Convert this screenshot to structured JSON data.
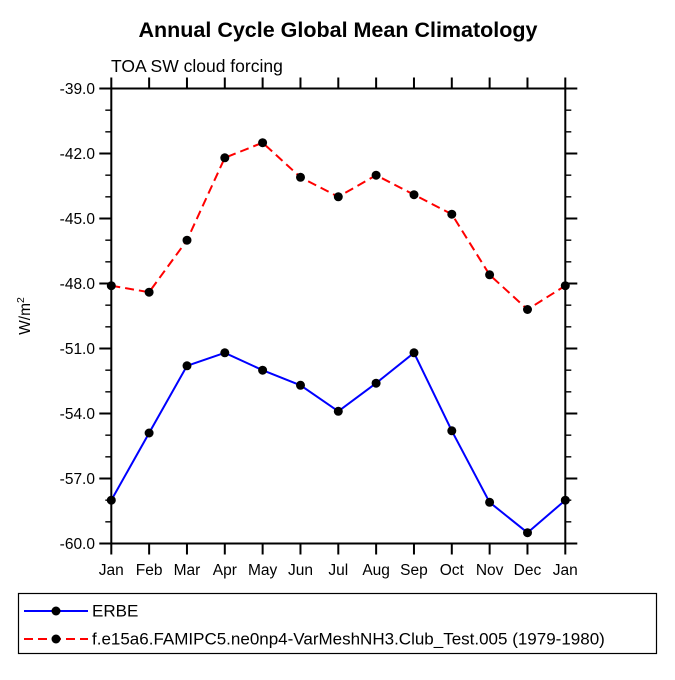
{
  "title": "Annual Cycle Global Mean Climatology",
  "subtitle": "TOA SW cloud forcing",
  "y_axis": {
    "label_base": "W/m",
    "label_sup": "2"
  },
  "colors": {
    "erbe_line": "#0000ff",
    "model_line": "#ff0000",
    "marker": "#000000",
    "axis": "#000000",
    "background": "#ffffff"
  },
  "chart_data": {
    "type": "line",
    "title": "Annual Cycle Global Mean Climatology",
    "subtitle": "TOA SW cloud forcing",
    "ylabel": "W/m2",
    "xlabel": "",
    "categories": [
      "Jan",
      "Feb",
      "Mar",
      "Apr",
      "May",
      "Jun",
      "Jul",
      "Aug",
      "Sep",
      "Oct",
      "Nov",
      "Dec",
      "Jan"
    ],
    "series": [
      {
        "name": "ERBE",
        "color": "#0000ff",
        "style": "solid",
        "marker": "filled-circle",
        "values": [
          -58.0,
          -54.9,
          -51.8,
          -51.2,
          -52.0,
          -52.7,
          -53.9,
          -52.6,
          -51.2,
          -54.8,
          -58.1,
          -59.5,
          -58.0
        ]
      },
      {
        "name": "f.e15a6.FAMIPC5.ne0np4-VarMeshNH3.Club_Test.005 (1979-1980)",
        "color": "#ff0000",
        "style": "dashed",
        "marker": "filled-circle",
        "values": [
          -48.1,
          -48.4,
          -46.0,
          -42.2,
          -41.5,
          -43.1,
          -44.0,
          -43.0,
          -43.9,
          -44.8,
          -47.6,
          -49.2,
          -48.1
        ]
      }
    ],
    "ylim": [
      -60.0,
      -39.0
    ],
    "ytick_step": 3.0,
    "yminor_step": 1.0,
    "ytick_labels": [
      "-39.0",
      "-42.0",
      "-45.0",
      "-48.0",
      "-51.0",
      "-54.0",
      "-57.0",
      "-60.0"
    ],
    "grid": false,
    "legend_position": "bottom-left-box"
  },
  "legend": {
    "items": [
      {
        "label": "ERBE"
      },
      {
        "label": "f.e15a6.FAMIPC5.ne0np4-VarMeshNH3.Club_Test.005 (1979-1980)"
      }
    ]
  }
}
